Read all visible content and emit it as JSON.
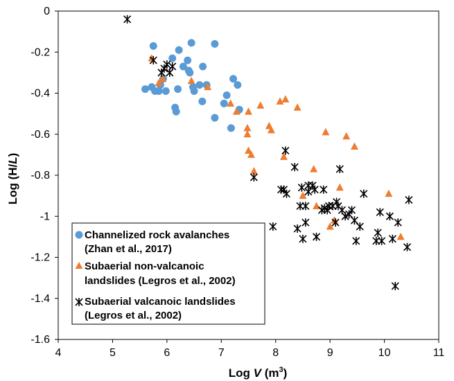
{
  "chart_data": {
    "type": "scatter",
    "xlim": [
      4,
      11
    ],
    "ylim": [
      -1.6,
      0
    ],
    "xticks": [
      4,
      5,
      6,
      7,
      8,
      9,
      10,
      11
    ],
    "yticks": [
      0,
      -0.2,
      -0.4,
      -0.6,
      -0.8,
      -1,
      -1.2,
      -1.4,
      -1.6
    ],
    "ytick_labels": [
      "0",
      "-0.2",
      "-0.4",
      "-0.6",
      "-0.8",
      "-1",
      "-1.2",
      "-1.4",
      "-1.6"
    ],
    "xlabel": {
      "prefix": "Log ",
      "var": "V",
      "unit_pre": " (m",
      "unit_sup": "3",
      "unit_post": ")"
    },
    "ylabel": {
      "prefix": "Log (H/",
      "var": "L",
      "suffix": ")"
    },
    "grid": false,
    "legend_placement": "bottom-left",
    "series": [
      {
        "marker": "circle",
        "color": "#5B9BD5",
        "legend": [
          "Channelized rock avalanches",
          "(Zhan et al., 2017)"
        ],
        "points": [
          [
            5.6,
            -0.38
          ],
          [
            5.72,
            -0.37
          ],
          [
            5.75,
            -0.17
          ],
          [
            5.78,
            -0.39
          ],
          [
            5.85,
            -0.39
          ],
          [
            5.88,
            -0.36
          ],
          [
            5.93,
            -0.33
          ],
          [
            5.98,
            -0.39
          ],
          [
            6.1,
            -0.23
          ],
          [
            6.15,
            -0.47
          ],
          [
            6.17,
            -0.49
          ],
          [
            6.2,
            -0.38
          ],
          [
            6.22,
            -0.19
          ],
          [
            6.3,
            -0.27
          ],
          [
            6.38,
            -0.24
          ],
          [
            6.4,
            -0.29
          ],
          [
            6.42,
            -0.3
          ],
          [
            6.45,
            -0.155
          ],
          [
            6.48,
            -0.37
          ],
          [
            6.5,
            -0.39
          ],
          [
            6.6,
            -0.36
          ],
          [
            6.65,
            -0.44
          ],
          [
            6.66,
            -0.27
          ],
          [
            6.73,
            -0.36
          ],
          [
            6.88,
            -0.16
          ],
          [
            6.88,
            -0.52
          ],
          [
            7.05,
            -0.45
          ],
          [
            7.1,
            -0.41
          ],
          [
            7.18,
            -0.57
          ],
          [
            7.22,
            -0.33
          ],
          [
            7.3,
            -0.36
          ],
          [
            7.33,
            -0.48
          ]
        ]
      },
      {
        "marker": "triangle",
        "color": "#ED7D31",
        "legend": [
          "Subaerial non-valcanoic",
          "landslides (Legros et al., 2002)"
        ],
        "points": [
          [
            5.72,
            -0.23
          ],
          [
            5.85,
            -0.35
          ],
          [
            5.92,
            -0.33
          ],
          [
            6.45,
            -0.34
          ],
          [
            6.75,
            -0.37
          ],
          [
            7.17,
            -0.45
          ],
          [
            7.28,
            -0.49
          ],
          [
            7.48,
            -0.57
          ],
          [
            7.48,
            -0.6
          ],
          [
            7.5,
            -0.68
          ],
          [
            7.5,
            -0.49
          ],
          [
            7.55,
            -0.7
          ],
          [
            7.6,
            -0.78
          ],
          [
            7.72,
            -0.46
          ],
          [
            7.88,
            -0.56
          ],
          [
            7.92,
            -0.58
          ],
          [
            8.08,
            -0.44
          ],
          [
            8.15,
            -0.71
          ],
          [
            8.18,
            -0.43
          ],
          [
            8.4,
            -0.47
          ],
          [
            8.5,
            -0.9
          ],
          [
            8.7,
            -0.77
          ],
          [
            8.75,
            -0.95
          ],
          [
            8.92,
            -0.59
          ],
          [
            9.0,
            -1.05
          ],
          [
            9.08,
            -1.02
          ],
          [
            9.18,
            -0.86
          ],
          [
            9.3,
            -0.61
          ],
          [
            9.45,
            -0.66
          ],
          [
            10.08,
            -0.89
          ],
          [
            10.3,
            -1.1
          ]
        ]
      },
      {
        "marker": "star",
        "color": "#000000",
        "legend": [
          "Subaerial valcanoic landslides",
          "(Legros et al., 2002)"
        ],
        "points": [
          [
            5.27,
            -0.04
          ],
          [
            5.75,
            -0.24
          ],
          [
            5.9,
            -0.3
          ],
          [
            5.95,
            -0.28
          ],
          [
            6.0,
            -0.26
          ],
          [
            6.05,
            -0.3
          ],
          [
            6.1,
            -0.27
          ],
          [
            7.6,
            -0.81
          ],
          [
            7.95,
            -1.05
          ],
          [
            8.1,
            -0.87
          ],
          [
            8.15,
            -0.87
          ],
          [
            8.18,
            -0.68
          ],
          [
            8.2,
            -0.89
          ],
          [
            8.35,
            -0.76
          ],
          [
            8.4,
            -1.06
          ],
          [
            8.45,
            -0.95
          ],
          [
            8.48,
            -0.86
          ],
          [
            8.5,
            -1.11
          ],
          [
            8.55,
            -1.03
          ],
          [
            8.55,
            -0.95
          ],
          [
            8.6,
            -0.88
          ],
          [
            8.6,
            -0.85
          ],
          [
            8.68,
            -0.85
          ],
          [
            8.72,
            -0.87
          ],
          [
            8.75,
            -1.1
          ],
          [
            8.85,
            -0.97
          ],
          [
            8.88,
            -0.87
          ],
          [
            8.9,
            -0.96
          ],
          [
            8.95,
            -0.97
          ],
          [
            8.98,
            -0.95
          ],
          [
            9.05,
            -0.95
          ],
          [
            9.1,
            -1.03
          ],
          [
            9.12,
            -0.93
          ],
          [
            9.15,
            -0.95
          ],
          [
            9.18,
            -0.77
          ],
          [
            9.22,
            -0.97
          ],
          [
            9.28,
            -1.0
          ],
          [
            9.35,
            -0.99
          ],
          [
            9.4,
            -0.97
          ],
          [
            9.45,
            -1.02
          ],
          [
            9.48,
            -1.12
          ],
          [
            9.55,
            -1.05
          ],
          [
            9.62,
            -0.89
          ],
          [
            9.85,
            -1.12
          ],
          [
            9.88,
            -1.08
          ],
          [
            9.92,
            -0.98
          ],
          [
            9.95,
            -1.12
          ],
          [
            10.1,
            -1.0
          ],
          [
            10.15,
            -1.11
          ],
          [
            10.2,
            -1.34
          ],
          [
            10.25,
            -1.03
          ],
          [
            10.42,
            -1.15
          ],
          [
            10.45,
            -0.92
          ]
        ]
      }
    ]
  }
}
